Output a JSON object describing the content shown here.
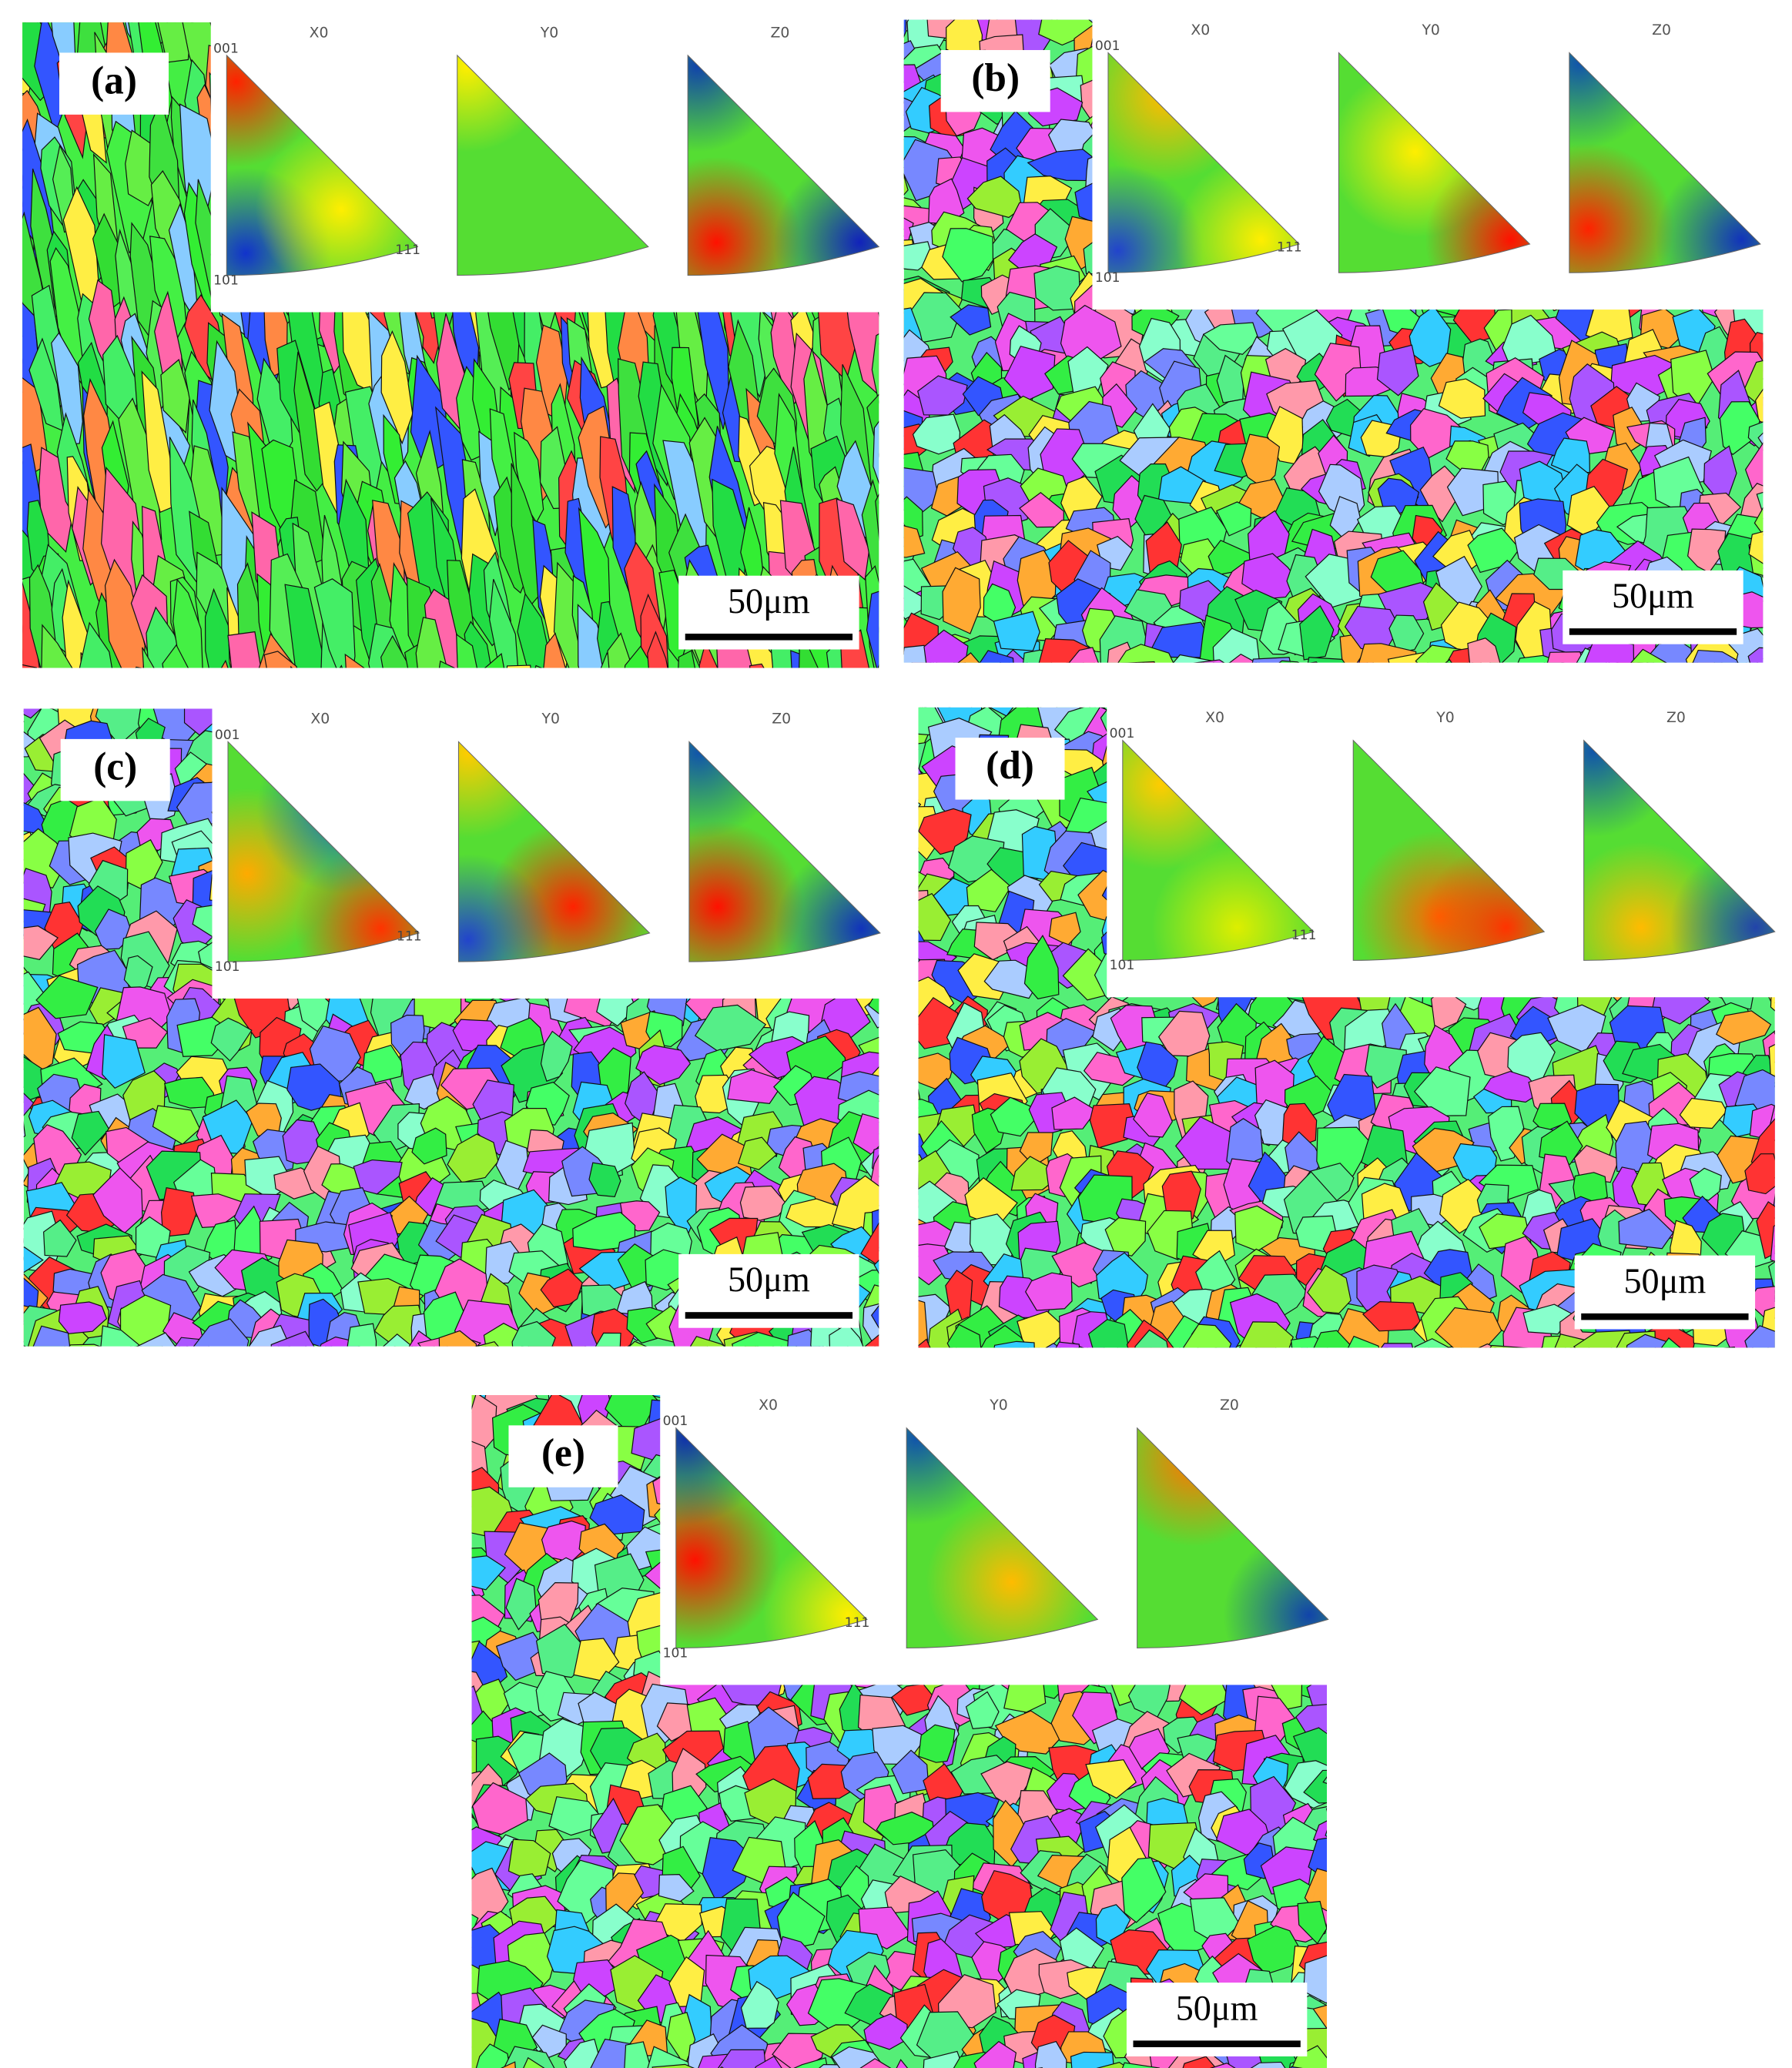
{
  "panels": [
    {
      "label": "(a)",
      "pole_figures": [
        {
          "title": "X0"
        },
        {
          "title": "Y0"
        },
        {
          "title": "Z0"
        }
      ],
      "corner_labels": [
        "001",
        "101",
        "111"
      ],
      "scale_bar": "50μm"
    },
    {
      "label": "(b)",
      "pole_figures": [
        {
          "title": "X0"
        },
        {
          "title": "Y0"
        },
        {
          "title": "Z0"
        }
      ],
      "corner_labels": [
        "001",
        "101",
        "111"
      ],
      "scale_bar": "50μm"
    },
    {
      "label": "(c)",
      "pole_figures": [
        {
          "title": "X0"
        },
        {
          "title": "Y0"
        },
        {
          "title": "Z0"
        }
      ],
      "corner_labels": [
        "001",
        "101",
        "111"
      ],
      "scale_bar": "50μm"
    },
    {
      "label": "(d)",
      "pole_figures": [
        {
          "title": "X0"
        },
        {
          "title": "Y0"
        },
        {
          "title": "Z0"
        }
      ],
      "corner_labels": [
        "001",
        "101",
        "111"
      ],
      "scale_bar": "50μm"
    },
    {
      "label": "(e)",
      "pole_figures": [
        {
          "title": "X0"
        },
        {
          "title": "Y0"
        },
        {
          "title": "Z0"
        }
      ],
      "corner_labels": [
        "001",
        "101",
        "111"
      ],
      "scale_bar": "50μm"
    }
  ]
}
